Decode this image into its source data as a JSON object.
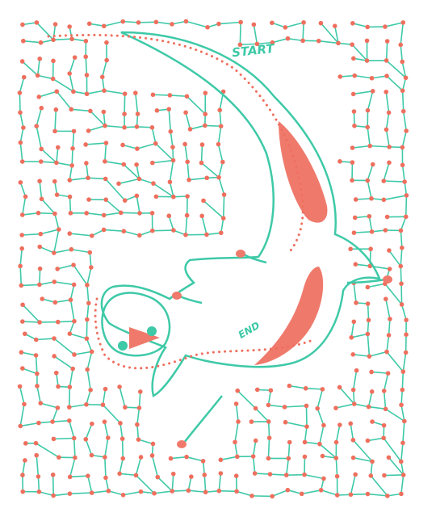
{
  "puzzle": {
    "start_label": "START",
    "end_label": "END"
  },
  "colors": {
    "path_line": "#3ec9a7",
    "dot": "#ef6f5e",
    "creature_fill": "#ef7a6c",
    "eye": "#3ec9a7",
    "background": "#ffffff"
  }
}
